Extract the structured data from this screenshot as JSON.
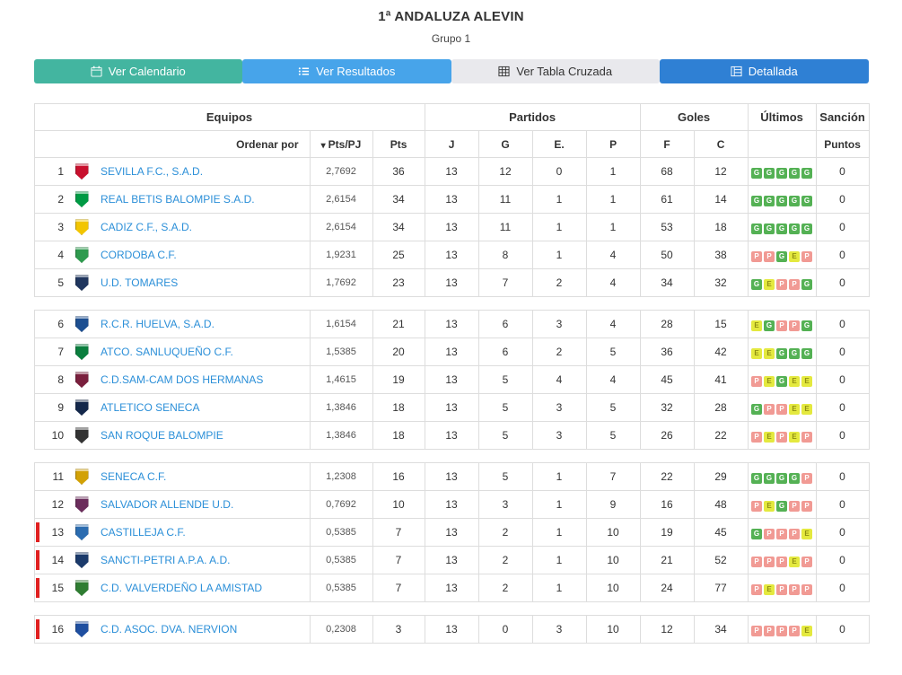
{
  "header": {
    "title": "1ª ANDALUZA ALEVIN",
    "subtitle": "Grupo 1"
  },
  "tabs": [
    {
      "id": "calendario",
      "label": "Ver Calendario",
      "icon": "calendar-icon",
      "bg": "#43b5a0",
      "fg": "#ffffff"
    },
    {
      "id": "resultados",
      "label": "Ver Resultados",
      "icon": "list-icon",
      "bg": "#47a4ea",
      "fg": "#ffffff"
    },
    {
      "id": "tabla-cruzada",
      "label": "Ver Tabla Cruzada",
      "icon": "table-grid-icon",
      "bg": "#e9e9ed",
      "fg": "#333333"
    },
    {
      "id": "detallada",
      "label": "Detallada",
      "icon": "detail-table-icon",
      "bg": "#2f80d4",
      "fg": "#ffffff"
    }
  ],
  "icons": {
    "sort_caret": "▾"
  },
  "colors": {
    "relegation_marker": "#e02020",
    "link": "#2b8fd8",
    "border": "#dddddd"
  },
  "table": {
    "group_headers": {
      "equipos": "Equipos",
      "partidos": "Partidos",
      "goles": "Goles",
      "ultimos": "Últimos",
      "sancion": "Sanción"
    },
    "subheaders": {
      "ordenar_por": "Ordenar por",
      "sort_selected": "Pts/PJ",
      "pts": "Pts",
      "j": "J",
      "g": "G",
      "e": "E.",
      "p": "P",
      "f": "F",
      "c": "C",
      "puntos": "Puntos"
    },
    "badge_colors": {
      "G": {
        "bg": "#54b154",
        "fg": "#ffffff"
      },
      "E": {
        "bg": "#e4e93f",
        "fg": "#8f8f13"
      },
      "P": {
        "bg": "#f19a94",
        "fg": "#ffffff"
      }
    },
    "block_size": 5,
    "rows": [
      {
        "pos": 1,
        "team": "SEVILLA F.C., S.A.D.",
        "pts_pj": "2,7692",
        "pts": 36,
        "j": 13,
        "g": 12,
        "e": 0,
        "p": 1,
        "f": 68,
        "c": 12,
        "last5": "GGGGG",
        "sancion": 0,
        "relegation": false,
        "crest": "#c8102e"
      },
      {
        "pos": 2,
        "team": "REAL BETIS BALOMPIE S.A.D.",
        "pts_pj": "2,6154",
        "pts": 34,
        "j": 13,
        "g": 11,
        "e": 1,
        "p": 1,
        "f": 61,
        "c": 14,
        "last5": "GGGGG",
        "sancion": 0,
        "relegation": false,
        "crest": "#009a44"
      },
      {
        "pos": 3,
        "team": "CADIZ C.F., S.A.D.",
        "pts_pj": "2,6154",
        "pts": 34,
        "j": 13,
        "g": 11,
        "e": 1,
        "p": 1,
        "f": 53,
        "c": 18,
        "last5": "GGGGG",
        "sancion": 0,
        "relegation": false,
        "crest": "#f2c500"
      },
      {
        "pos": 4,
        "team": "CORDOBA C.F.",
        "pts_pj": "1,9231",
        "pts": 25,
        "j": 13,
        "g": 8,
        "e": 1,
        "p": 4,
        "f": 50,
        "c": 38,
        "last5": "PPGEP",
        "sancion": 0,
        "relegation": false,
        "crest": "#2e9a4e"
      },
      {
        "pos": 5,
        "team": "U.D. TOMARES",
        "pts_pj": "1,7692",
        "pts": 23,
        "j": 13,
        "g": 7,
        "e": 2,
        "p": 4,
        "f": 34,
        "c": 32,
        "last5": "GEPPG",
        "sancion": 0,
        "relegation": false,
        "crest": "#20365e"
      },
      {
        "pos": 6,
        "team": "R.C.R. HUELVA, S.A.D.",
        "pts_pj": "1,6154",
        "pts": 21,
        "j": 13,
        "g": 6,
        "e": 3,
        "p": 4,
        "f": 28,
        "c": 15,
        "last5": "EGPPG",
        "sancion": 0,
        "relegation": false,
        "crest": "#1d4f91"
      },
      {
        "pos": 7,
        "team": "ATCO. SANLUQUEÑO C.F.",
        "pts_pj": "1,5385",
        "pts": 20,
        "j": 13,
        "g": 6,
        "e": 2,
        "p": 5,
        "f": 36,
        "c": 42,
        "last5": "EEGGG",
        "sancion": 0,
        "relegation": false,
        "crest": "#0b7e3e"
      },
      {
        "pos": 8,
        "team": "C.D.SAM-CAM DOS HERMANAS",
        "pts_pj": "1,4615",
        "pts": 19,
        "j": 13,
        "g": 5,
        "e": 4,
        "p": 4,
        "f": 45,
        "c": 41,
        "last5": "PEGEE",
        "sancion": 0,
        "relegation": false,
        "crest": "#7a1f3d"
      },
      {
        "pos": 9,
        "team": "ATLETICO SENECA",
        "pts_pj": "1,3846",
        "pts": 18,
        "j": 13,
        "g": 5,
        "e": 3,
        "p": 5,
        "f": 32,
        "c": 28,
        "last5": "GPPEE",
        "sancion": 0,
        "relegation": false,
        "crest": "#14284b"
      },
      {
        "pos": 10,
        "team": "SAN ROQUE BALOMPIE",
        "pts_pj": "1,3846",
        "pts": 18,
        "j": 13,
        "g": 5,
        "e": 3,
        "p": 5,
        "f": 26,
        "c": 22,
        "last5": "PEPEP",
        "sancion": 0,
        "relegation": false,
        "crest": "#333333"
      },
      {
        "pos": 11,
        "team": "SENECA C.F.",
        "pts_pj": "1,2308",
        "pts": 16,
        "j": 13,
        "g": 5,
        "e": 1,
        "p": 7,
        "f": 22,
        "c": 29,
        "last5": "GGGGP",
        "sancion": 0,
        "relegation": false,
        "crest": "#d2a106"
      },
      {
        "pos": 12,
        "team": "SALVADOR ALLENDE U.D.",
        "pts_pj": "0,7692",
        "pts": 10,
        "j": 13,
        "g": 3,
        "e": 1,
        "p": 9,
        "f": 16,
        "c": 48,
        "last5": "PEGPP",
        "sancion": 0,
        "relegation": false,
        "crest": "#6b2d5c"
      },
      {
        "pos": 13,
        "team": "CASTILLEJA C.F.",
        "pts_pj": "0,5385",
        "pts": 7,
        "j": 13,
        "g": 2,
        "e": 1,
        "p": 10,
        "f": 19,
        "c": 45,
        "last5": "GPPPE",
        "sancion": 0,
        "relegation": true,
        "crest": "#2b6cb0"
      },
      {
        "pos": 14,
        "team": "SANCTI-PETRI A.P.A. A.D.",
        "pts_pj": "0,5385",
        "pts": 7,
        "j": 13,
        "g": 2,
        "e": 1,
        "p": 10,
        "f": 21,
        "c": 52,
        "last5": "PPPEP",
        "sancion": 0,
        "relegation": true,
        "crest": "#1b3a6b"
      },
      {
        "pos": 15,
        "team": "C.D. VALVERDEÑO LA AMISTAD",
        "pts_pj": "0,5385",
        "pts": 7,
        "j": 13,
        "g": 2,
        "e": 1,
        "p": 10,
        "f": 24,
        "c": 77,
        "last5": "PEPPP",
        "sancion": 0,
        "relegation": true,
        "crest": "#2f7d32"
      },
      {
        "pos": 16,
        "team": "C.D. ASOC. DVA. NERVION",
        "pts_pj": "0,2308",
        "pts": 3,
        "j": 13,
        "g": 0,
        "e": 3,
        "p": 10,
        "f": 12,
        "c": 34,
        "last5": "PPPPE",
        "sancion": 0,
        "relegation": true,
        "crest": "#1f4fa0"
      }
    ]
  }
}
